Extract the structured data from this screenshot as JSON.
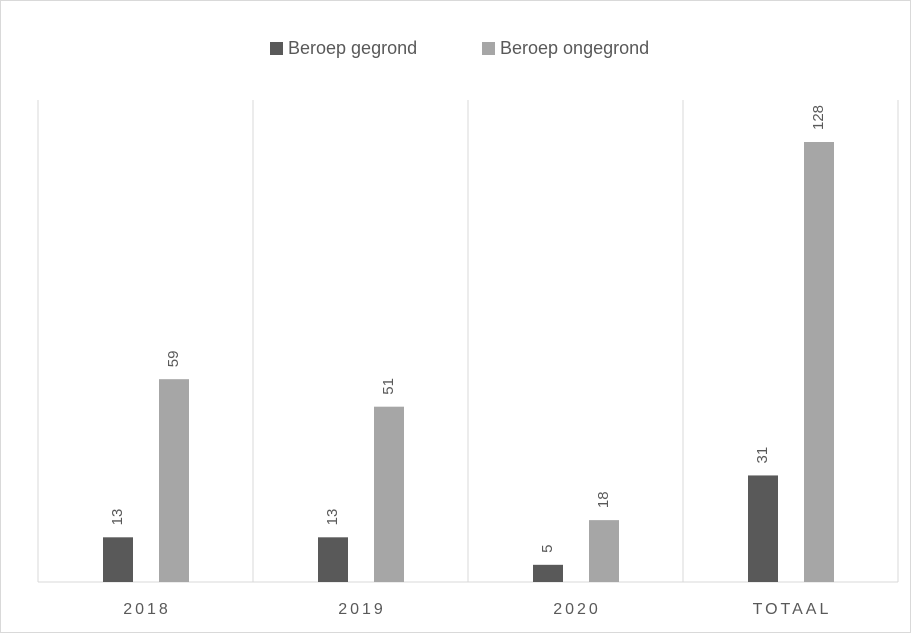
{
  "chart_data": {
    "type": "bar",
    "categories": [
      "2018",
      "2019",
      "2020",
      "TOTAAL"
    ],
    "series": [
      {
        "name": "Beroep gegrond",
        "color": "#595959",
        "values": [
          13,
          13,
          5,
          31
        ]
      },
      {
        "name": "Beroep ongegrond",
        "color": "#a6a6a6",
        "values": [
          59,
          51,
          18,
          128
        ]
      }
    ],
    "legend": "top",
    "grid": true
  }
}
